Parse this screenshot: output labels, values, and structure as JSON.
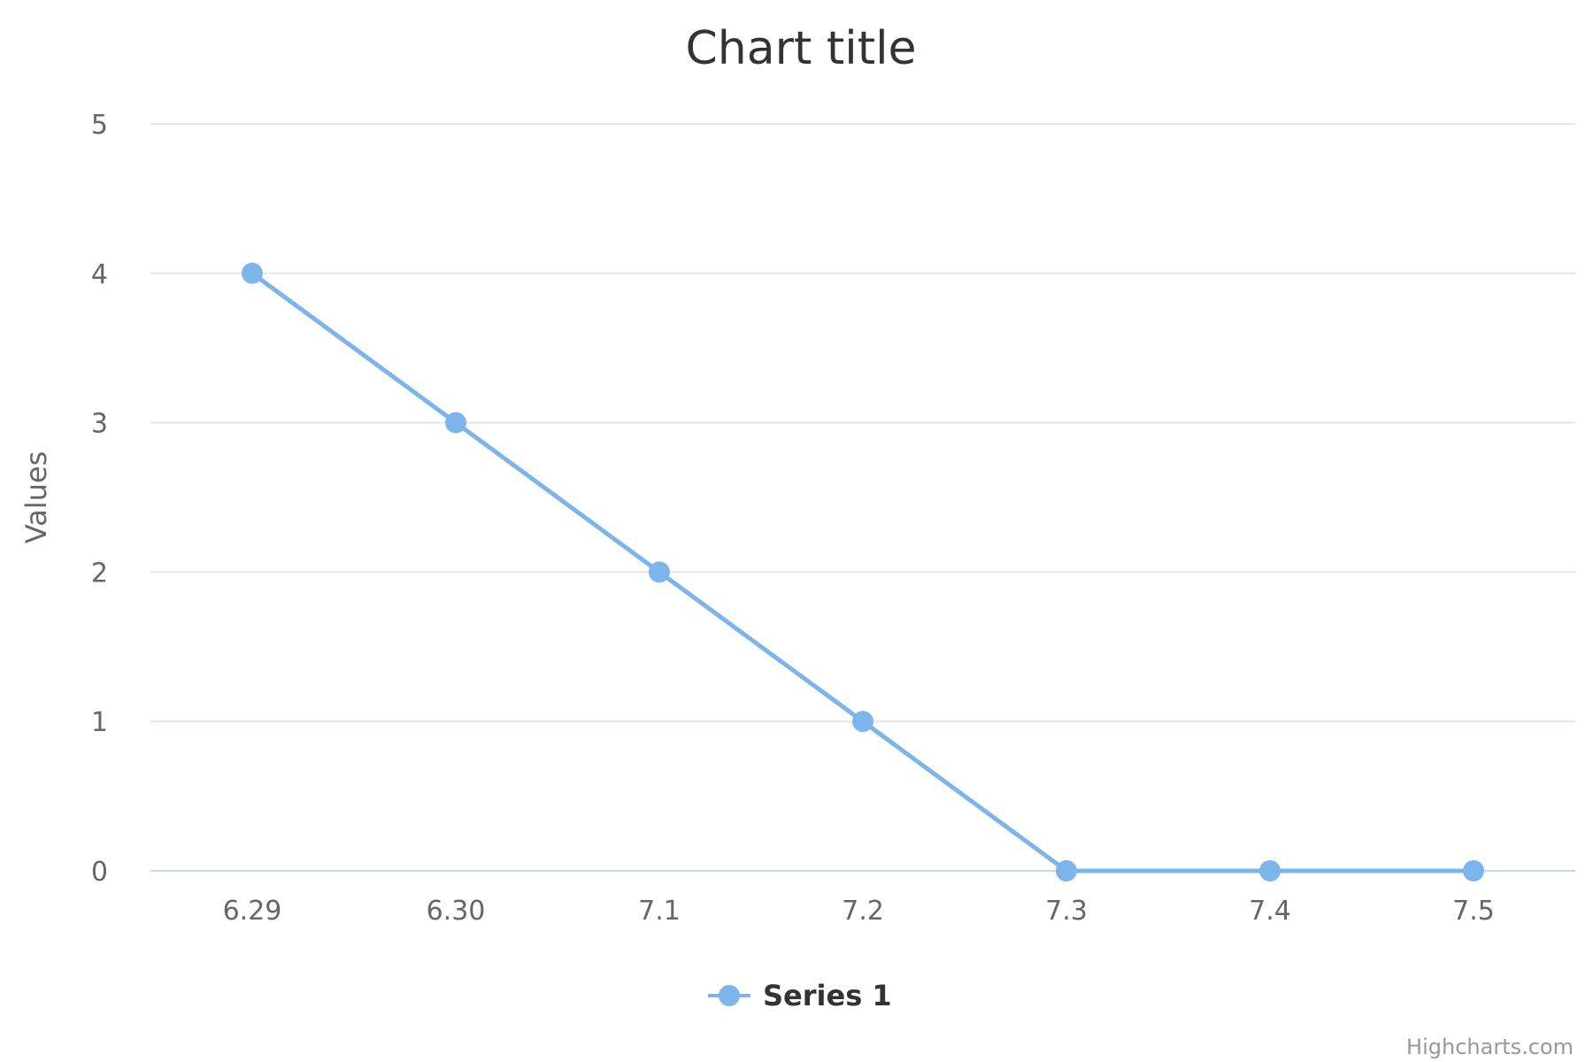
{
  "chart_data": {
    "type": "line",
    "title": "Chart title",
    "xlabel": "",
    "ylabel": "Values",
    "categories": [
      "6.29",
      "6.30",
      "7.1",
      "7.2",
      "7.3",
      "7.4",
      "7.5"
    ],
    "ylim": [
      0,
      5
    ],
    "yticks": [
      "0",
      "1",
      "2",
      "3",
      "4",
      "5"
    ],
    "series": [
      {
        "name": "Series 1",
        "values": [
          4,
          3,
          2,
          1,
          0,
          0,
          0
        ],
        "color": "#7cb5ec"
      }
    ],
    "grid": true,
    "legend": "bottom-center",
    "credits": "Highcharts.com"
  }
}
